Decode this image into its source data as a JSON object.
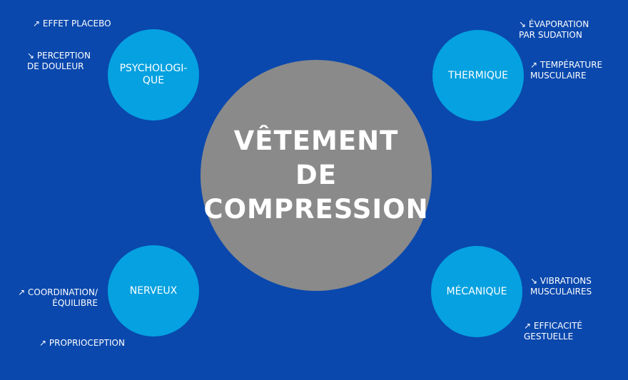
{
  "center": {
    "line1": "VÊTEMENT",
    "line2": "DE",
    "line3": "COMPRESSION"
  },
  "bubbles": {
    "psychological": "PSYCHOLOGI-\nQUE",
    "thermal": "THERMIQUE",
    "nervous": "NERVEUX",
    "mechanical": "MÉCANIQUE"
  },
  "notes": {
    "placebo": "↗ EFFET PLACEBO",
    "pain": "↘ PERCEPTION\nDE DOULEUR",
    "sweat": "↘ ÉVAPORATION\nPAR SUDATION",
    "muscle_temp": "↗ TEMPÉRATURE\nMUSCULAIRE",
    "coordination": "↗ COORDINATION/\nÉQUILIBRE",
    "proprioception": "↗ PROPRIOCEPTION",
    "vibrations": "↘ VIBRATIONS\nMUSCULAIRES",
    "efficiency": "↗ EFFICACITÉ\nGESTUELLE"
  },
  "colors": {
    "background": "#0a48ad",
    "center_circle": "#8a8a8a",
    "bubble": "#05a1e0",
    "text": "#ffffff"
  }
}
